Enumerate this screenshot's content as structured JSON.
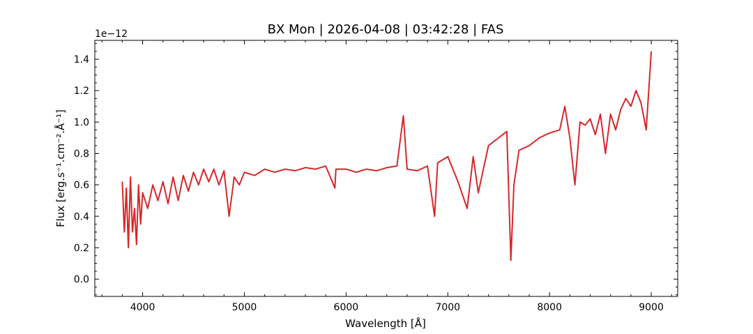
{
  "chart_data": {
    "type": "line",
    "title": "BX Mon | 2026-04-08 | 03:42:28 | FAS",
    "xlabel": "Wavelength [Å]",
    "ylabel": "Flux [erg.s⁻¹.cm⁻².Å⁻¹]",
    "y_offset_label": "1e−12",
    "xlim": [
      3530,
      9260
    ],
    "ylim": [
      -0.11,
      1.52
    ],
    "x_ticks": [
      4000,
      5000,
      6000,
      7000,
      8000,
      9000
    ],
    "x_tick_labels": [
      "4000",
      "5000",
      "6000",
      "7000",
      "8000",
      "9000"
    ],
    "y_ticks": [
      0.0,
      0.2,
      0.4,
      0.6,
      0.8,
      1.0,
      1.2,
      1.4
    ],
    "y_tick_labels": [
      "0.0",
      "0.2",
      "0.4",
      "0.6",
      "0.8",
      "1.0",
      "1.2",
      "1.4"
    ],
    "grid": false,
    "line_color": "#d62728",
    "series": [
      {
        "x": [
          3800,
          3820,
          3840,
          3860,
          3880,
          3900,
          3920,
          3940,
          3960,
          3980,
          4000,
          4050,
          4100,
          4150,
          4200,
          4250,
          4300,
          4350,
          4400,
          4450,
          4500,
          4550,
          4600,
          4650,
          4700,
          4750,
          4800,
          4850,
          4900,
          4950,
          5000,
          5100,
          5200,
          5300,
          5400,
          5500,
          5600,
          5700,
          5800,
          5890,
          5900,
          6000,
          6100,
          6200,
          6300,
          6400,
          6500,
          6563,
          6600,
          6700,
          6800,
          6870,
          6900,
          7000,
          7100,
          7190,
          7250,
          7300,
          7400,
          7500,
          7580,
          7620,
          7650,
          7700,
          7800,
          7900,
          8000,
          8100,
          8150,
          8200,
          8250,
          8300,
          8350,
          8400,
          8450,
          8500,
          8550,
          8600,
          8650,
          8700,
          8750,
          8800,
          8850,
          8900,
          8950,
          9000
        ],
        "y": [
          0.62,
          0.3,
          0.58,
          0.2,
          0.65,
          0.3,
          0.45,
          0.22,
          0.6,
          0.35,
          0.55,
          0.45,
          0.6,
          0.5,
          0.62,
          0.48,
          0.65,
          0.5,
          0.66,
          0.56,
          0.68,
          0.6,
          0.7,
          0.62,
          0.7,
          0.6,
          0.69,
          0.4,
          0.65,
          0.6,
          0.68,
          0.66,
          0.7,
          0.68,
          0.7,
          0.69,
          0.71,
          0.7,
          0.72,
          0.58,
          0.7,
          0.7,
          0.68,
          0.7,
          0.69,
          0.71,
          0.72,
          1.04,
          0.7,
          0.69,
          0.72,
          0.4,
          0.74,
          0.78,
          0.62,
          0.45,
          0.78,
          0.55,
          0.85,
          0.9,
          0.94,
          0.12,
          0.6,
          0.82,
          0.85,
          0.9,
          0.93,
          0.95,
          1.1,
          0.9,
          0.6,
          1.0,
          0.98,
          1.02,
          0.92,
          1.05,
          0.8,
          1.05,
          0.95,
          1.08,
          1.15,
          1.1,
          1.2,
          1.12,
          0.95,
          1.45
        ]
      }
    ]
  }
}
